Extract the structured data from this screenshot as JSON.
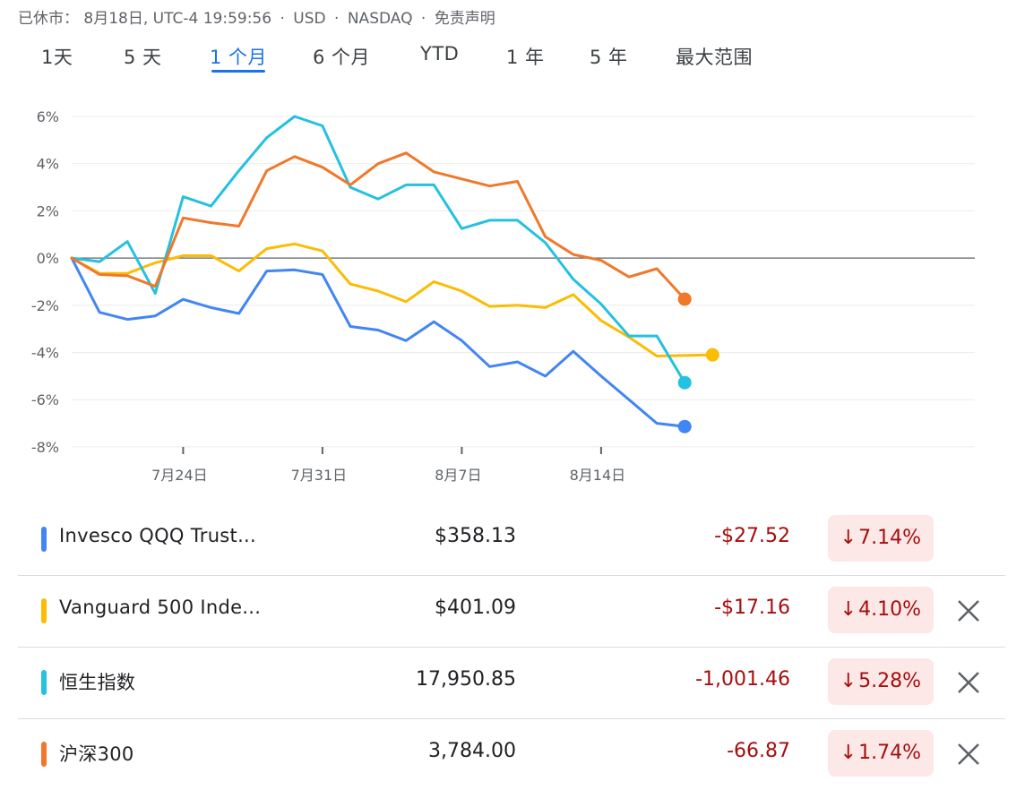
{
  "status": {
    "market": "已休市：",
    "datetime": "8月18日, UTC-4 19:59:56",
    "currency": "USD",
    "exchange": "NASDAQ",
    "disclaimer": "免责声明"
  },
  "tabs": [
    {
      "label": "1天",
      "active": false
    },
    {
      "label": "5 天",
      "active": false
    },
    {
      "label": "1 个月",
      "active": true
    },
    {
      "label": "6 个月",
      "active": false
    },
    {
      "label": "YTD",
      "active": false
    },
    {
      "label": "1 年",
      "active": false
    },
    {
      "label": "5 年",
      "active": false
    },
    {
      "label": "最大范围",
      "active": false
    }
  ],
  "chart_data": {
    "type": "line",
    "x": [
      "7月18日",
      "7月19日",
      "7月20日",
      "7月21日",
      "7月24日",
      "7月25日",
      "7月26日",
      "7月27日",
      "7月28日",
      "7月31日",
      "8月1日",
      "8月2日",
      "8月3日",
      "8月4日",
      "8月7日",
      "8月8日",
      "8月9日",
      "8月10日",
      "8月11日",
      "8月14日",
      "8月15日",
      "8月16日",
      "8月17日",
      "8月18日"
    ],
    "x_ticks": [
      "7月24日",
      "7月31日",
      "8月7日",
      "8月14日"
    ],
    "y_ticks": [
      "6%",
      "4%",
      "2%",
      "0%",
      "-2%",
      "-4%",
      "-6%",
      "-8%"
    ],
    "ylim": [
      -8,
      6.3
    ],
    "series": [
      {
        "name": "Invesco QQQ Trust...",
        "color": "#4285f4",
        "values": [
          0,
          -2.3,
          -2.6,
          -2.45,
          -1.75,
          -2.1,
          -2.35,
          -0.55,
          -0.5,
          -0.7,
          -2.9,
          -3.05,
          -3.5,
          -2.7,
          -3.5,
          -4.6,
          -4.4,
          -5.0,
          -3.95,
          -5.0,
          -6.0,
          -7.0,
          -7.14,
          null
        ]
      },
      {
        "name": "Vanguard 500 Inde...",
        "color": "#fbbc04",
        "values": [
          0,
          -0.65,
          -0.65,
          -0.2,
          0.1,
          0.1,
          -0.55,
          0.4,
          0.6,
          0.3,
          -1.1,
          -1.4,
          -1.85,
          -1.0,
          -1.4,
          -2.05,
          -2.0,
          -2.1,
          -1.55,
          -2.65,
          -3.35,
          -4.15,
          -4.13,
          -4.1
        ]
      },
      {
        "name": "恒生指数",
        "color": "#24c1e0",
        "values": [
          0,
          -0.15,
          0.7,
          -1.5,
          2.6,
          2.2,
          3.7,
          5.1,
          6.0,
          5.6,
          3.0,
          2.5,
          3.1,
          3.1,
          1.25,
          1.6,
          1.6,
          0.65,
          -0.9,
          -1.95,
          -3.3,
          -3.3,
          -5.28,
          null
        ]
      },
      {
        "name": "沪深300",
        "color": "#f0782a",
        "values": [
          0,
          -0.7,
          -0.75,
          -1.2,
          1.7,
          1.5,
          1.35,
          3.7,
          4.3,
          3.85,
          3.1,
          4.0,
          4.45,
          3.65,
          3.35,
          3.05,
          3.25,
          0.9,
          0.15,
          -0.1,
          -0.8,
          -0.45,
          -1.74,
          null
        ]
      }
    ]
  },
  "rows": [
    {
      "name": "Invesco QQQ Trust...",
      "price": "$358.13",
      "change": "-$27.52",
      "pct": "7.14%",
      "color": "#4285f4",
      "removable": false
    },
    {
      "name": "Vanguard 500 Inde...",
      "price": "$401.09",
      "change": "-$17.16",
      "pct": "4.10%",
      "color": "#fbbc04",
      "removable": true
    },
    {
      "name": "恒生指数",
      "price": "17,950.85",
      "change": "-1,001.46",
      "pct": "5.28%",
      "color": "#24c1e0",
      "removable": true
    },
    {
      "name": "沪深300",
      "price": "3,784.00",
      "change": "-66.87",
      "pct": "1.74%",
      "color": "#f0782a",
      "removable": true
    }
  ],
  "arrow_glyph": "↓"
}
